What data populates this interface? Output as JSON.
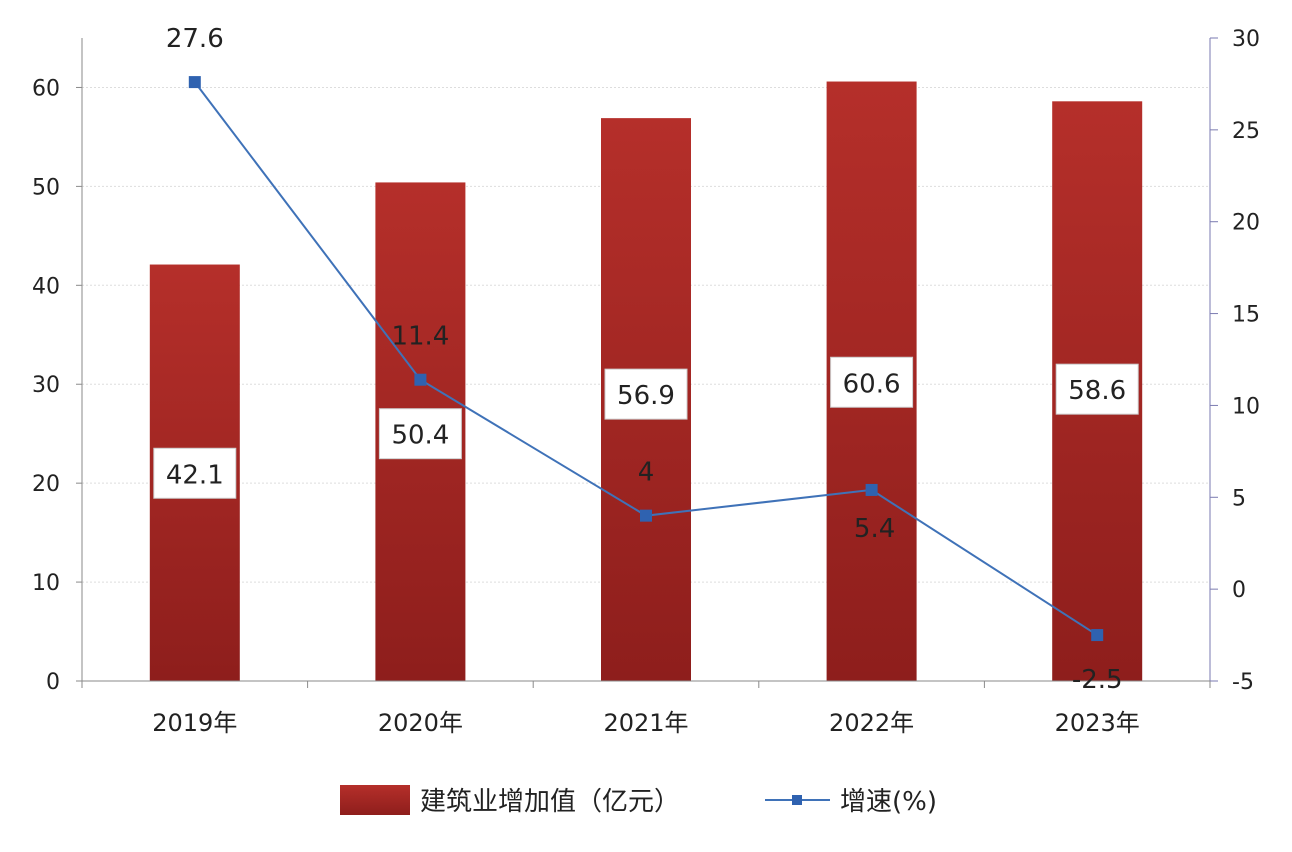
{
  "colors": {
    "bar_top": "#b52f2a",
    "bar_bottom": "#8e1e1c",
    "line": "#3f72b8",
    "marker": "#2f62b0",
    "axis": "#8a8a8a",
    "right_axis": "#7a7ab0",
    "grid": "#dddddd"
  },
  "chart_data": {
    "type": "bar",
    "categories": [
      "2019年",
      "2020年",
      "2021年",
      "2022年",
      "2023年"
    ],
    "series": [
      {
        "name": "建筑业增加值（亿元）",
        "type": "bar",
        "axis": "left",
        "values": [
          42.1,
          50.4,
          56.9,
          60.6,
          58.6
        ],
        "value_labels": [
          "42.1",
          "50.4",
          "56.9",
          "60.6",
          "58.6"
        ]
      },
      {
        "name": "增速(%)",
        "type": "line",
        "axis": "right",
        "values": [
          27.6,
          11.4,
          4,
          5.4,
          -2.5
        ],
        "value_labels": [
          "27.6",
          "11.4",
          "4",
          "5.4",
          "-2.5"
        ]
      }
    ],
    "y_left": {
      "lim": [
        0,
        65
      ],
      "ticks": [
        0,
        10,
        20,
        30,
        40,
        50,
        60
      ]
    },
    "y_right": {
      "lim": [
        -5,
        30
      ],
      "ticks": [
        -5,
        0,
        5,
        10,
        15,
        20,
        25,
        30
      ]
    },
    "grid": true,
    "legend": "bottom"
  },
  "legend": {
    "bar_label": "建筑业增加值（亿元）",
    "line_label": "增速(%)"
  }
}
